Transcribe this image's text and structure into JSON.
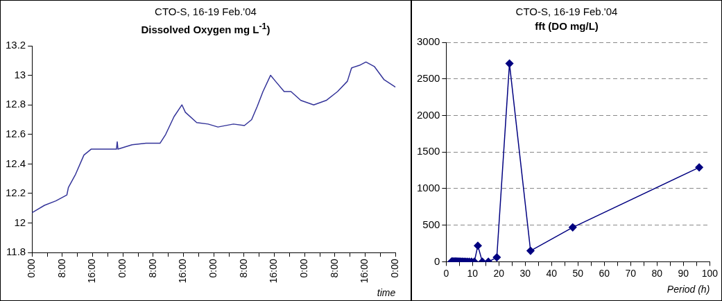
{
  "chart_data": [
    {
      "type": "line",
      "title": "CTO-S,  16-19 Feb.'04",
      "subtitle": "Dissolved Oxygen mg L$^{-1}$)",
      "xlabel": "time",
      "x": [
        "2004-02-16T00:00",
        "2004-02-16T03:18",
        "2004-02-16T06:18",
        "2004-02-16T09:12",
        "2004-02-16T09:36",
        "2004-02-16T11:30",
        "2004-02-16T13:42",
        "2004-02-16T15:36",
        "2004-02-16T18:54",
        "2004-02-16T22:18",
        "2004-02-16T22:30",
        "2004-02-16T22:42",
        "2004-02-17T02:24",
        "2004-02-17T06:06",
        "2004-02-17T09:48",
        "2004-02-17T11:18",
        "2004-02-17T13:30",
        "2004-02-17T15:36",
        "2004-02-17T16:30",
        "2004-02-17T19:30",
        "2004-02-17T22:30",
        "2004-02-18T01:06",
        "2004-02-18T05:12",
        "2004-02-18T08:06",
        "2004-02-18T10:00",
        "2004-02-18T11:30",
        "2004-02-18T13:00",
        "2004-02-18T15:00",
        "2004-02-18T16:18",
        "2004-02-18T18:36",
        "2004-02-18T20:24",
        "2004-02-18T23:00",
        "2004-02-19T02:24",
        "2004-02-19T05:42",
        "2004-02-19T08:42",
        "2004-02-19T11:18",
        "2004-02-19T12:24",
        "2004-02-19T14:42",
        "2004-02-19T16:12",
        "2004-02-19T18:24",
        "2004-02-19T21:00",
        "2004-02-20T00:00"
      ],
      "series": [
        {
          "color": "#333399",
          "values": [
            12.07,
            12.12,
            12.15,
            12.19,
            12.24,
            12.33,
            12.46,
            12.5,
            12.5,
            12.5,
            12.55,
            12.5,
            12.53,
            12.54,
            12.54,
            12.6,
            12.72,
            12.8,
            12.75,
            12.68,
            12.67,
            12.65,
            12.67,
            12.66,
            12.7,
            12.79,
            12.89,
            13,
            12.96,
            12.89,
            12.89,
            12.83,
            12.8,
            12.83,
            12.89,
            12.96,
            13.05,
            13.07,
            13.09,
            13.06,
            12.97,
            12.92
          ]
        }
      ],
      "xlim": [
        "2004-02-16T00:00",
        "2004-02-20T00:00"
      ],
      "xticks": [
        {
          "value": "2004-02-16T00:00",
          "label": "0:00"
        },
        {
          "value": "2004-02-16T04:00",
          "label": null
        },
        {
          "value": "2004-02-16T08:00",
          "label": "8:00"
        },
        {
          "value": "2004-02-16T12:00",
          "label": null
        },
        {
          "value": "2004-02-16T16:00",
          "label": "16:00"
        },
        {
          "value": "2004-02-16T20:00",
          "label": null
        },
        {
          "value": "2004-02-17T00:00",
          "label": "0:00"
        },
        {
          "value": "2004-02-17T04:00",
          "label": null
        },
        {
          "value": "2004-02-17T08:00",
          "label": "8:00"
        },
        {
          "value": "2004-02-17T12:00",
          "label": null
        },
        {
          "value": "2004-02-17T16:00",
          "label": "16:00"
        },
        {
          "value": "2004-02-17T20:00",
          "label": null
        },
        {
          "value": "2004-02-18T00:00",
          "label": "0:00"
        },
        {
          "value": "2004-02-18T04:00",
          "label": null
        },
        {
          "value": "2004-02-18T08:00",
          "label": "8:00"
        },
        {
          "value": "2004-02-18T12:00",
          "label": null
        },
        {
          "value": "2004-02-18T16:00",
          "label": "16:00"
        },
        {
          "value": "2004-02-18T20:00",
          "label": null
        },
        {
          "value": "2004-02-19T00:00",
          "label": "0:00"
        },
        {
          "value": "2004-02-19T04:00",
          "label": null
        },
        {
          "value": "2004-02-19T08:00",
          "label": "8:00"
        },
        {
          "value": "2004-02-19T12:00",
          "label": null
        },
        {
          "value": "2004-02-19T16:00",
          "label": "16:00"
        },
        {
          "value": "2004-02-19T20:00",
          "label": null
        },
        {
          "value": "2004-02-20T00:00",
          "label": "0:00"
        }
      ],
      "ylim": [
        11.8,
        13.2
      ],
      "yticks": [
        11.8,
        12,
        12.2,
        12.4,
        12.6,
        12.8,
        13,
        13.2
      ],
      "grid": false,
      "marker": "none",
      "line_style": "solid",
      "legend": false
    },
    {
      "type": "line",
      "title": "CTO-S,  16-19 Feb.'04",
      "subtitle": "fft (DO mg/L)",
      "xlabel": "Period (h)",
      "x": [
        96,
        48,
        32,
        24,
        19.2,
        16,
        13.71,
        12,
        10.67,
        9.6,
        8.73,
        8,
        7.38,
        6.86,
        6.4,
        6,
        5.65,
        5.33,
        5.05,
        4.8,
        4.57,
        4.36,
        4.17,
        4,
        3.84,
        3.69,
        3.56,
        3.43,
        3.31,
        3.2,
        3,
        2.82,
        2.67,
        2.53,
        2.4,
        2.29,
        2.18,
        2.09,
        2
      ],
      "series": [
        {
          "color": "#000080",
          "values": [
            1290,
            470,
            150,
            2710,
            60,
            0,
            0,
            220,
            0,
            0,
            0,
            0,
            0,
            0,
            0,
            0,
            0,
            0,
            0,
            0,
            0,
            0,
            0,
            0,
            0,
            0,
            0,
            0,
            0,
            0,
            0,
            0,
            0,
            0,
            0,
            0,
            0,
            0,
            0
          ]
        }
      ],
      "xlim": [
        0,
        100
      ],
      "xticks": [
        0,
        {
          "value": 5,
          "label": null
        },
        10,
        {
          "value": 15,
          "label": null
        },
        20,
        {
          "value": 25,
          "label": null
        },
        30,
        {
          "value": 35,
          "label": null
        },
        40,
        {
          "value": 45,
          "label": null
        },
        50,
        {
          "value": 55,
          "label": null
        },
        60,
        {
          "value": 65,
          "label": null
        },
        70,
        {
          "value": 75,
          "label": null
        },
        80,
        {
          "value": 85,
          "label": null
        },
        90,
        {
          "value": 95,
          "label": null
        },
        100
      ],
      "ylim": [
        0,
        3000
      ],
      "yticks": [
        0,
        500,
        1000,
        1500,
        2000,
        2500,
        3000
      ],
      "grid": "y",
      "marker": "diamond",
      "line_style": "solid",
      "legend": false
    }
  ]
}
